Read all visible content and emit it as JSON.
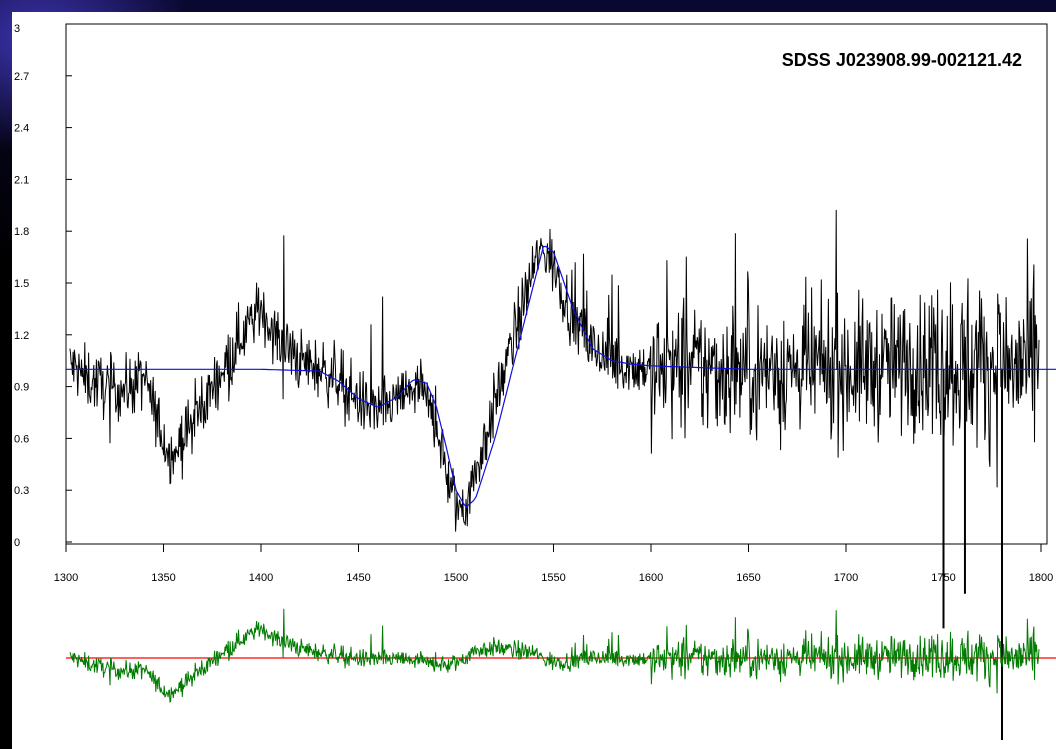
{
  "chart_data": [
    {
      "type": "line",
      "title": "SDSS J023908.99-002121.42",
      "xlabel": "",
      "ylabel": "",
      "xlim": [
        1300,
        1800
      ],
      "ylim": [
        0,
        3
      ],
      "x_ticks": [
        "1300",
        "1350",
        "1400",
        "1450",
        "1500",
        "1550",
        "1600",
        "1650",
        "1700",
        "1750",
        "1800"
      ],
      "y_ticks": [
        "0",
        "0.3",
        "0.6",
        "0.9",
        "1.2",
        "1.5",
        "1.8",
        "2.1",
        "2.4",
        "2.7",
        "3"
      ],
      "grid": false,
      "series": [
        {
          "role": "observed-flux",
          "color": "#000000",
          "x": [
            1300,
            1310,
            1320,
            1330,
            1340,
            1350,
            1355,
            1360,
            1370,
            1380,
            1390,
            1400,
            1410,
            1420,
            1430,
            1440,
            1450,
            1460,
            1470,
            1480,
            1490,
            1495,
            1500,
            1505,
            1510,
            1520,
            1530,
            1540,
            1545,
            1550,
            1560,
            1570,
            1580,
            1590,
            1600,
            1650,
            1700,
            1750,
            1800
          ],
          "values": [
            1.05,
            0.95,
            0.9,
            0.88,
            0.95,
            0.6,
            0.5,
            0.6,
            0.78,
            1.0,
            1.2,
            1.35,
            1.15,
            1.05,
            1.0,
            0.95,
            0.82,
            0.75,
            0.82,
            0.9,
            0.7,
            0.4,
            0.2,
            0.22,
            0.4,
            0.8,
            1.2,
            1.6,
            1.7,
            1.6,
            1.3,
            1.12,
            1.05,
            1.02,
            1.0,
            1.0,
            1.0,
            1.05,
            1.0
          ]
        },
        {
          "role": "model-fit",
          "color": "#1010dd",
          "x": [
            1300,
            1350,
            1400,
            1430,
            1440,
            1450,
            1460,
            1470,
            1478,
            1485,
            1490,
            1495,
            1500,
            1505,
            1510,
            1520,
            1530,
            1540,
            1545,
            1550,
            1560,
            1570,
            1580,
            1590,
            1600,
            1650,
            1700,
            1750,
            1810
          ],
          "values": [
            1.0,
            1.0,
            1.0,
            0.99,
            0.93,
            0.83,
            0.78,
            0.84,
            0.94,
            0.92,
            0.78,
            0.55,
            0.3,
            0.2,
            0.25,
            0.6,
            1.05,
            1.5,
            1.72,
            1.68,
            1.35,
            1.12,
            1.05,
            1.03,
            1.02,
            1.0,
            1.0,
            1.0,
            1.0
          ]
        },
        {
          "role": "residual",
          "color": "#007a00",
          "x": [
            1300,
            1350,
            1380,
            1400,
            1450,
            1500,
            1550,
            1600,
            1650,
            1700,
            1750,
            1800
          ],
          "values": [
            0.0,
            -0.1,
            0.05,
            0.1,
            0.0,
            0.0,
            0.0,
            0.0,
            0.0,
            0.0,
            0.0,
            0.0
          ]
        },
        {
          "role": "residual-zero",
          "color": "#ff0000",
          "x": [
            1300,
            1810
          ],
          "values": [
            0,
            0
          ]
        }
      ]
    }
  ]
}
